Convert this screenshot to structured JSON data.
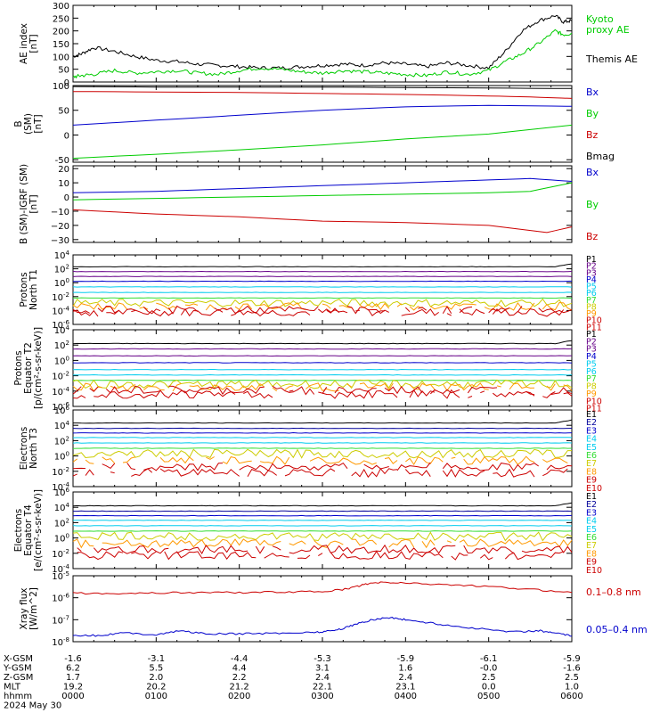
{
  "colors": {
    "black": "#000000",
    "green": "#00cc00",
    "red": "#cc0000",
    "blue": "#0000cc",
    "purple": "#660088",
    "navy": "#000099",
    "cyan": "#00ccee",
    "lgreen": "#33dd33",
    "yellow": "#cccc00",
    "orange": "#ff9900",
    "dorange": "#dd6600"
  },
  "x_axis": {
    "ticks": [
      "0000",
      "0100",
      "0200",
      "0300",
      "0400",
      "0500",
      "0600"
    ],
    "rows": [
      {
        "label": "X-GSM",
        "values": [
          "-1.6",
          "-3.1",
          "-4.4",
          "-5.3",
          "-5.9",
          "-6.1",
          "-5.9"
        ]
      },
      {
        "label": "Y-GSM",
        "values": [
          "6.2",
          "5.5",
          "4.4",
          "3.1",
          "1.6",
          "-0.0",
          "-1.6"
        ]
      },
      {
        "label": "Z-GSM",
        "values": [
          "1.7",
          "2.0",
          "2.2",
          "2.4",
          "2.4",
          "2.5",
          "2.5"
        ]
      },
      {
        "label": "MLT",
        "values": [
          "19.2",
          "20.2",
          "21.2",
          "22.1",
          "23.1",
          "0.0",
          "1.0"
        ]
      },
      {
        "label": "hhmm",
        "values": [
          "0000",
          "0100",
          "0200",
          "0300",
          "0400",
          "0500",
          "0600"
        ]
      }
    ],
    "date": "2024 May 30"
  },
  "chart_data": [
    {
      "type": "line",
      "ylabel_lines": [
        "AE index",
        "[nT]"
      ],
      "ylim": [
        0,
        300
      ],
      "ytick_values": [
        0,
        50,
        100,
        150,
        200,
        250,
        300
      ],
      "yticks": [
        "0",
        "50",
        "100",
        "150",
        "200",
        "250",
        "300"
      ],
      "legend": [
        {
          "text": "Kyoto",
          "color": "green"
        },
        {
          "text": "proxy AE",
          "color": "green"
        },
        {
          "text": "Themis AE",
          "color": "black"
        }
      ],
      "series": [
        {
          "name": "Themis AE",
          "color": "black",
          "x": [
            0,
            0.1,
            0.25,
            0.5,
            0.75,
            1,
            1.25,
            1.5,
            1.75,
            2,
            2.25,
            2.5,
            2.75,
            3,
            3.25,
            3.5,
            3.75,
            4,
            4.25,
            4.5,
            4.75,
            5,
            5.2,
            5.4,
            5.6,
            5.8,
            5.9,
            6
          ],
          "y": [
            100,
            110,
            135,
            120,
            100,
            85,
            80,
            70,
            65,
            60,
            55,
            55,
            60,
            65,
            70,
            65,
            75,
            70,
            60,
            75,
            65,
            55,
            120,
            200,
            240,
            260,
            235,
            240
          ]
        },
        {
          "name": "Kyoto proxy AE",
          "color": "green",
          "x": [
            0,
            0.1,
            0.25,
            0.5,
            0.75,
            1,
            1.25,
            1.5,
            1.75,
            2,
            2.25,
            2.5,
            2.75,
            3,
            3.25,
            3.5,
            3.75,
            4,
            4.25,
            4.5,
            4.75,
            5,
            5.2,
            5.4,
            5.6,
            5.8,
            5.9,
            6
          ],
          "y": [
            20,
            25,
            30,
            45,
            35,
            40,
            45,
            35,
            30,
            45,
            55,
            50,
            40,
            35,
            45,
            40,
            35,
            30,
            25,
            40,
            30,
            45,
            80,
            110,
            150,
            200,
            185,
            190
          ]
        }
      ]
    },
    {
      "type": "line",
      "ylabel_lines": [
        "B",
        "(SM)",
        "[nT]"
      ],
      "ylim": [
        -55,
        100
      ],
      "ytick_values": [
        -50,
        0,
        50,
        100
      ],
      "yticks": [
        "-50",
        "0",
        "50",
        "100"
      ],
      "legend": [
        {
          "text": "Bx",
          "color": "blue"
        },
        {
          "text": "By",
          "color": "green"
        },
        {
          "text": "Bz",
          "color": "red"
        },
        {
          "text": "Bmag",
          "color": "black"
        }
      ],
      "series": [
        {
          "name": "Bmag",
          "color": "black",
          "x": [
            0,
            1,
            2,
            3,
            4,
            5,
            6
          ],
          "y": [
            98,
            97,
            97,
            97,
            96,
            95,
            94
          ]
        },
        {
          "name": "Bz",
          "color": "red",
          "x": [
            0,
            1,
            2,
            3,
            4,
            5,
            5.5,
            6
          ],
          "y": [
            88,
            87,
            86,
            84,
            82,
            79,
            77,
            74
          ]
        },
        {
          "name": "Bx",
          "color": "blue",
          "x": [
            0,
            1,
            2,
            3,
            4,
            5,
            6
          ],
          "y": [
            20,
            30,
            40,
            50,
            57,
            60,
            58
          ]
        },
        {
          "name": "By",
          "color": "green",
          "x": [
            0,
            1,
            2,
            3,
            4,
            5,
            6
          ],
          "y": [
            -47,
            -39,
            -30,
            -20,
            -8,
            2,
            20
          ]
        }
      ]
    },
    {
      "type": "line",
      "ylabel_lines": [
        "B (SM)-IGRF (SM)",
        "[nT]"
      ],
      "ylim": [
        -32,
        22
      ],
      "ytick_values": [
        -30,
        -20,
        -10,
        0,
        10,
        20
      ],
      "yticks": [
        "−30",
        "−20",
        "−10",
        "0",
        "10",
        "20"
      ],
      "legend": [
        {
          "text": "Bx",
          "color": "blue"
        },
        {
          "text": "By",
          "color": "green"
        },
        {
          "text": "Bz",
          "color": "red"
        }
      ],
      "series": [
        {
          "name": "Bx",
          "color": "blue",
          "x": [
            0,
            1,
            2,
            3,
            4,
            5,
            5.5,
            6
          ],
          "y": [
            3,
            4,
            6,
            8,
            10,
            12,
            13,
            11
          ]
        },
        {
          "name": "By",
          "color": "green",
          "x": [
            0,
            1,
            2,
            3,
            4,
            5,
            5.5,
            6
          ],
          "y": [
            -2,
            -1,
            0,
            1,
            2,
            3,
            4,
            10
          ]
        },
        {
          "name": "Bz",
          "color": "red",
          "x": [
            0,
            1,
            2,
            3,
            4,
            5,
            5.7,
            6
          ],
          "y": [
            -9,
            -12,
            -14,
            -17,
            -18,
            -20,
            -25,
            -21
          ]
        }
      ]
    },
    {
      "type": "line",
      "ylabel_lines": [
        "Protons",
        "North T1"
      ],
      "log": true,
      "ylim": [
        -6,
        4
      ],
      "ytick_values": [
        4,
        2,
        0,
        -2,
        -4,
        -6
      ],
      "yticks": [
        "10^4",
        "10^2",
        "10^0",
        "10^-2",
        "10^-4",
        "10^-6"
      ],
      "legend_colors": [
        "black",
        "purple",
        "purple",
        "blue",
        "cyan",
        "cyan",
        "lgreen",
        "yellow",
        "orange",
        "red",
        "red"
      ],
      "levels": [
        2.3,
        1.6,
        0.9,
        0.2,
        -0.6,
        -1.4,
        -2.2,
        -2.9,
        -3.4,
        -3.9,
        -4.3
      ],
      "legend": [
        "P1",
        "P2",
        "P3",
        "P4",
        "P5",
        "P6",
        "P7",
        "P8",
        "P9",
        "P10",
        "P11"
      ]
    },
    {
      "type": "line",
      "ylabel_lines": [
        "Protons",
        "Equator T2",
        "[p/(cm²-s-sr-keV)]"
      ],
      "log": true,
      "ylim": [
        -6,
        4
      ],
      "ytick_values": [
        4,
        2,
        0,
        -2,
        -4,
        -6
      ],
      "yticks": [
        "10^4",
        "10^2",
        "10^0",
        "10^-2",
        "10^-4",
        "10^-6"
      ],
      "legend_colors": [
        "black",
        "purple",
        "purple",
        "blue",
        "cyan",
        "cyan",
        "lgreen",
        "yellow",
        "orange",
        "red",
        "red"
      ],
      "levels": [
        2.2,
        1.5,
        0.6,
        -0.3,
        -1.2,
        -1.9,
        -2.6,
        -3.1,
        -3.5,
        -3.9,
        -4.4
      ],
      "legend": [
        "P1",
        "P2",
        "P3",
        "P4",
        "P5",
        "P6",
        "P7",
        "P8",
        "P9",
        "P10",
        "P11"
      ]
    },
    {
      "type": "line",
      "ylabel_lines": [
        "Electrons",
        "North T3"
      ],
      "log": true,
      "ylim": [
        -4,
        6
      ],
      "ytick_values": [
        6,
        4,
        2,
        0,
        -2,
        -4
      ],
      "yticks": [
        "10^6",
        "10^4",
        "10^2",
        "10^0",
        "10^-2",
        "10^-4"
      ],
      "legend_colors": [
        "black",
        "navy",
        "blue",
        "cyan",
        "cyan",
        "lgreen",
        "yellow",
        "orange",
        "red",
        "red"
      ],
      "levels": [
        4.3,
        3.6,
        3.0,
        2.4,
        1.7,
        1.0,
        0.3,
        -0.6,
        -1.4,
        -2.2
      ],
      "legend": [
        "E1",
        "E2",
        "E3",
        "E4",
        "E5",
        "E6",
        "E7",
        "E8",
        "E9",
        "E10"
      ]
    },
    {
      "type": "line",
      "ylabel_lines": [
        "Electrons",
        "Equator T4",
        "[e/(cm²-s-sr-keV)]"
      ],
      "log": true,
      "ylim": [
        -4,
        6
      ],
      "ytick_values": [
        6,
        4,
        2,
        0,
        -2,
        -4
      ],
      "yticks": [
        "10^6",
        "10^4",
        "10^2",
        "10^0",
        "10^-2",
        "10^-4"
      ],
      "legend_colors": [
        "black",
        "navy",
        "blue",
        "cyan",
        "cyan",
        "lgreen",
        "yellow",
        "orange",
        "red",
        "red"
      ],
      "levels": [
        4.2,
        3.5,
        2.9,
        2.3,
        1.6,
        0.9,
        0.2,
        -0.7,
        -1.5,
        -2.3
      ],
      "legend": [
        "E1",
        "E2",
        "E3",
        "E4",
        "E5",
        "E6",
        "E7",
        "E8",
        "E9",
        "E10"
      ]
    },
    {
      "type": "line",
      "ylabel_lines": [
        "Xray flux",
        "[W/m^2]"
      ],
      "log": true,
      "ylim": [
        -8,
        -5
      ],
      "ytick_values": [
        -5,
        -6,
        -7,
        -8
      ],
      "yticks": [
        "10^-5",
        "10^-6",
        "10^-7",
        "10^-8"
      ],
      "legend": [
        {
          "text": "0.1–0.8 nm",
          "color": "red"
        },
        {
          "text": "0.05–0.4 nm",
          "color": "blue"
        }
      ],
      "series": [
        {
          "name": "0.1-0.8 nm",
          "color": "red",
          "x": [
            0,
            0.5,
            1,
            1.5,
            2,
            2.5,
            3,
            3.3,
            3.5,
            3.7,
            4,
            4.5,
            5,
            5.5,
            6
          ],
          "y": [
            -5.8,
            -5.8,
            -5.78,
            -5.76,
            -5.76,
            -5.74,
            -5.72,
            -5.6,
            -5.4,
            -5.3,
            -5.33,
            -5.4,
            -5.5,
            -5.62,
            -5.76
          ]
        },
        {
          "name": "0.05-0.4 nm",
          "color": "blue",
          "x": [
            0,
            0.3,
            0.6,
            1,
            1.3,
            1.6,
            2,
            2.4,
            2.8,
            3,
            3.2,
            3.4,
            3.6,
            3.8,
            4,
            4.3,
            4.6,
            5,
            5.3,
            5.6,
            5.8,
            6
          ],
          "y": [
            -7.7,
            -7.72,
            -7.6,
            -7.68,
            -7.5,
            -7.65,
            -7.64,
            -7.62,
            -7.58,
            -7.55,
            -7.45,
            -7.2,
            -7.0,
            -6.9,
            -7.0,
            -7.15,
            -7.3,
            -7.45,
            -7.55,
            -7.5,
            -7.6,
            -7.75
          ]
        }
      ]
    }
  ]
}
